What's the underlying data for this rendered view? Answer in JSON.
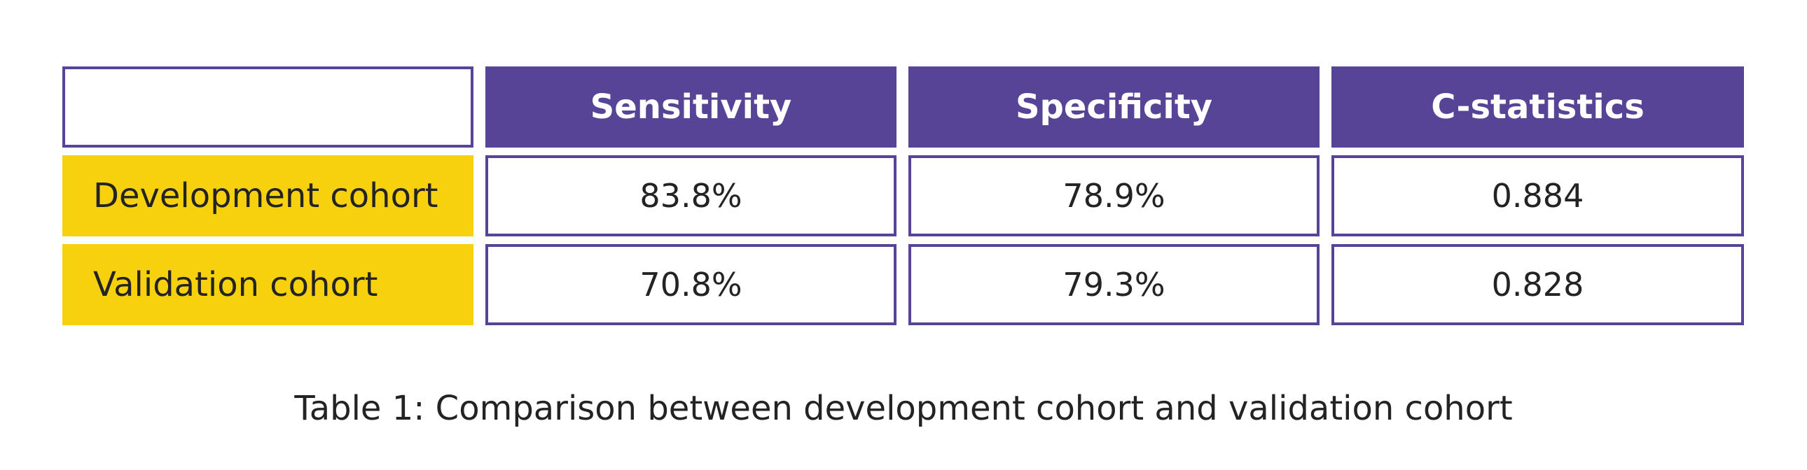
{
  "table": {
    "columns": [
      "Sensitivity",
      "Specificity",
      "C-statistics"
    ],
    "rows": [
      {
        "label": "Development cohort",
        "values": [
          "83.8%",
          "78.9%",
          "0.884"
        ]
      },
      {
        "label": "Validation cohort",
        "values": [
          "70.8%",
          "79.3%",
          "0.828"
        ]
      }
    ]
  },
  "caption": "Table 1: Comparison between development cohort and validation cohort",
  "colors": {
    "header_bg": "#574496",
    "row_label_bg": "#f7d10e",
    "border": "#574496",
    "text": "#232323"
  }
}
